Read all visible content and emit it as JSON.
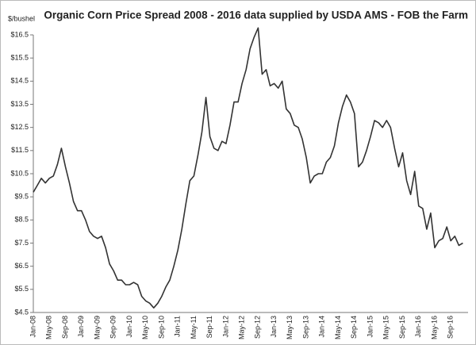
{
  "chart_data": {
    "type": "line",
    "title": "Organic Corn Price Spread 2008 - 2016 data supplied by USDA AMS - FOB the Farm",
    "y_label": "$/bushel",
    "categories": [
      "Jan-08",
      null,
      null,
      null,
      "May-08",
      null,
      null,
      null,
      "Sep-08",
      null,
      null,
      null,
      "Jan-09",
      null,
      null,
      null,
      "May-09",
      null,
      null,
      null,
      "Sep-09",
      null,
      null,
      null,
      "Jan-10",
      null,
      null,
      null,
      "May-10",
      null,
      null,
      null,
      "Sep-10",
      null,
      null,
      null,
      "Jan-11",
      null,
      null,
      null,
      "May-11",
      null,
      null,
      null,
      "Sep-11",
      null,
      null,
      null,
      "Jan-12",
      null,
      null,
      null,
      "May-12",
      null,
      null,
      null,
      "Sep-12",
      null,
      null,
      null,
      "Jan-13",
      null,
      null,
      null,
      "May-13",
      null,
      null,
      null,
      "Sep-13",
      null,
      null,
      null,
      "Jan-14",
      null,
      null,
      null,
      "May-14",
      null,
      null,
      null,
      "Sep-14",
      null,
      null,
      null,
      "Jan-15",
      null,
      null,
      null,
      "May-15",
      null,
      null,
      null,
      "Sep-15",
      null,
      null,
      null,
      "Jan-16",
      null,
      null,
      null,
      "May-16",
      null,
      null,
      null,
      "Sep-16",
      null,
      null,
      null
    ],
    "values": [
      9.7,
      10.0,
      10.3,
      10.1,
      10.3,
      10.4,
      10.9,
      11.6,
      10.8,
      10.1,
      9.3,
      8.9,
      8.9,
      8.5,
      8.0,
      7.8,
      7.7,
      7.8,
      7.3,
      6.6,
      6.3,
      5.9,
      5.9,
      5.7,
      5.7,
      5.8,
      5.7,
      5.2,
      5.0,
      4.9,
      4.7,
      4.9,
      5.2,
      5.6,
      5.9,
      6.5,
      7.2,
      8.1,
      9.2,
      10.2,
      10.4,
      11.3,
      12.3,
      13.8,
      12.1,
      11.6,
      11.5,
      11.9,
      11.8,
      12.6,
      13.6,
      13.6,
      14.4,
      15.0,
      15.9,
      16.4,
      16.8,
      14.8,
      15.0,
      14.3,
      14.4,
      14.2,
      14.5,
      13.3,
      13.1,
      12.6,
      12.5,
      12.0,
      11.2,
      10.1,
      10.4,
      10.5,
      10.5,
      11.0,
      11.2,
      11.7,
      12.7,
      13.4,
      13.9,
      13.6,
      13.1,
      10.8,
      11.0,
      11.5,
      12.1,
      12.8,
      12.7,
      12.5,
      12.8,
      12.5,
      11.6,
      10.8,
      11.4,
      10.2,
      9.6,
      10.6,
      9.1,
      9.0,
      8.1,
      8.8,
      7.3,
      7.6,
      7.7,
      8.2,
      7.6,
      7.8,
      7.4,
      7.5
    ],
    "color": "#333333",
    "ylim": [
      4.5,
      16.5
    ],
    "yticks": [
      {
        "value": 4.5,
        "label": "$4.5"
      },
      {
        "value": 5.5,
        "label": "$5.5"
      },
      {
        "value": 6.5,
        "label": "$6.5"
      },
      {
        "value": 7.5,
        "label": "$7.5"
      },
      {
        "value": 8.5,
        "label": "$8.5"
      },
      {
        "value": 9.5,
        "label": "$9.5"
      },
      {
        "value": 10.5,
        "label": "$10.5"
      },
      {
        "value": 11.5,
        "label": "$11.5"
      },
      {
        "value": 12.5,
        "label": "$12.5"
      },
      {
        "value": 13.5,
        "label": "$13.5"
      },
      {
        "value": 14.5,
        "label": "$14.5"
      },
      {
        "value": 15.5,
        "label": "$15.5"
      },
      {
        "value": 16.5,
        "label": "$16.5"
      }
    ],
    "grid": false
  }
}
